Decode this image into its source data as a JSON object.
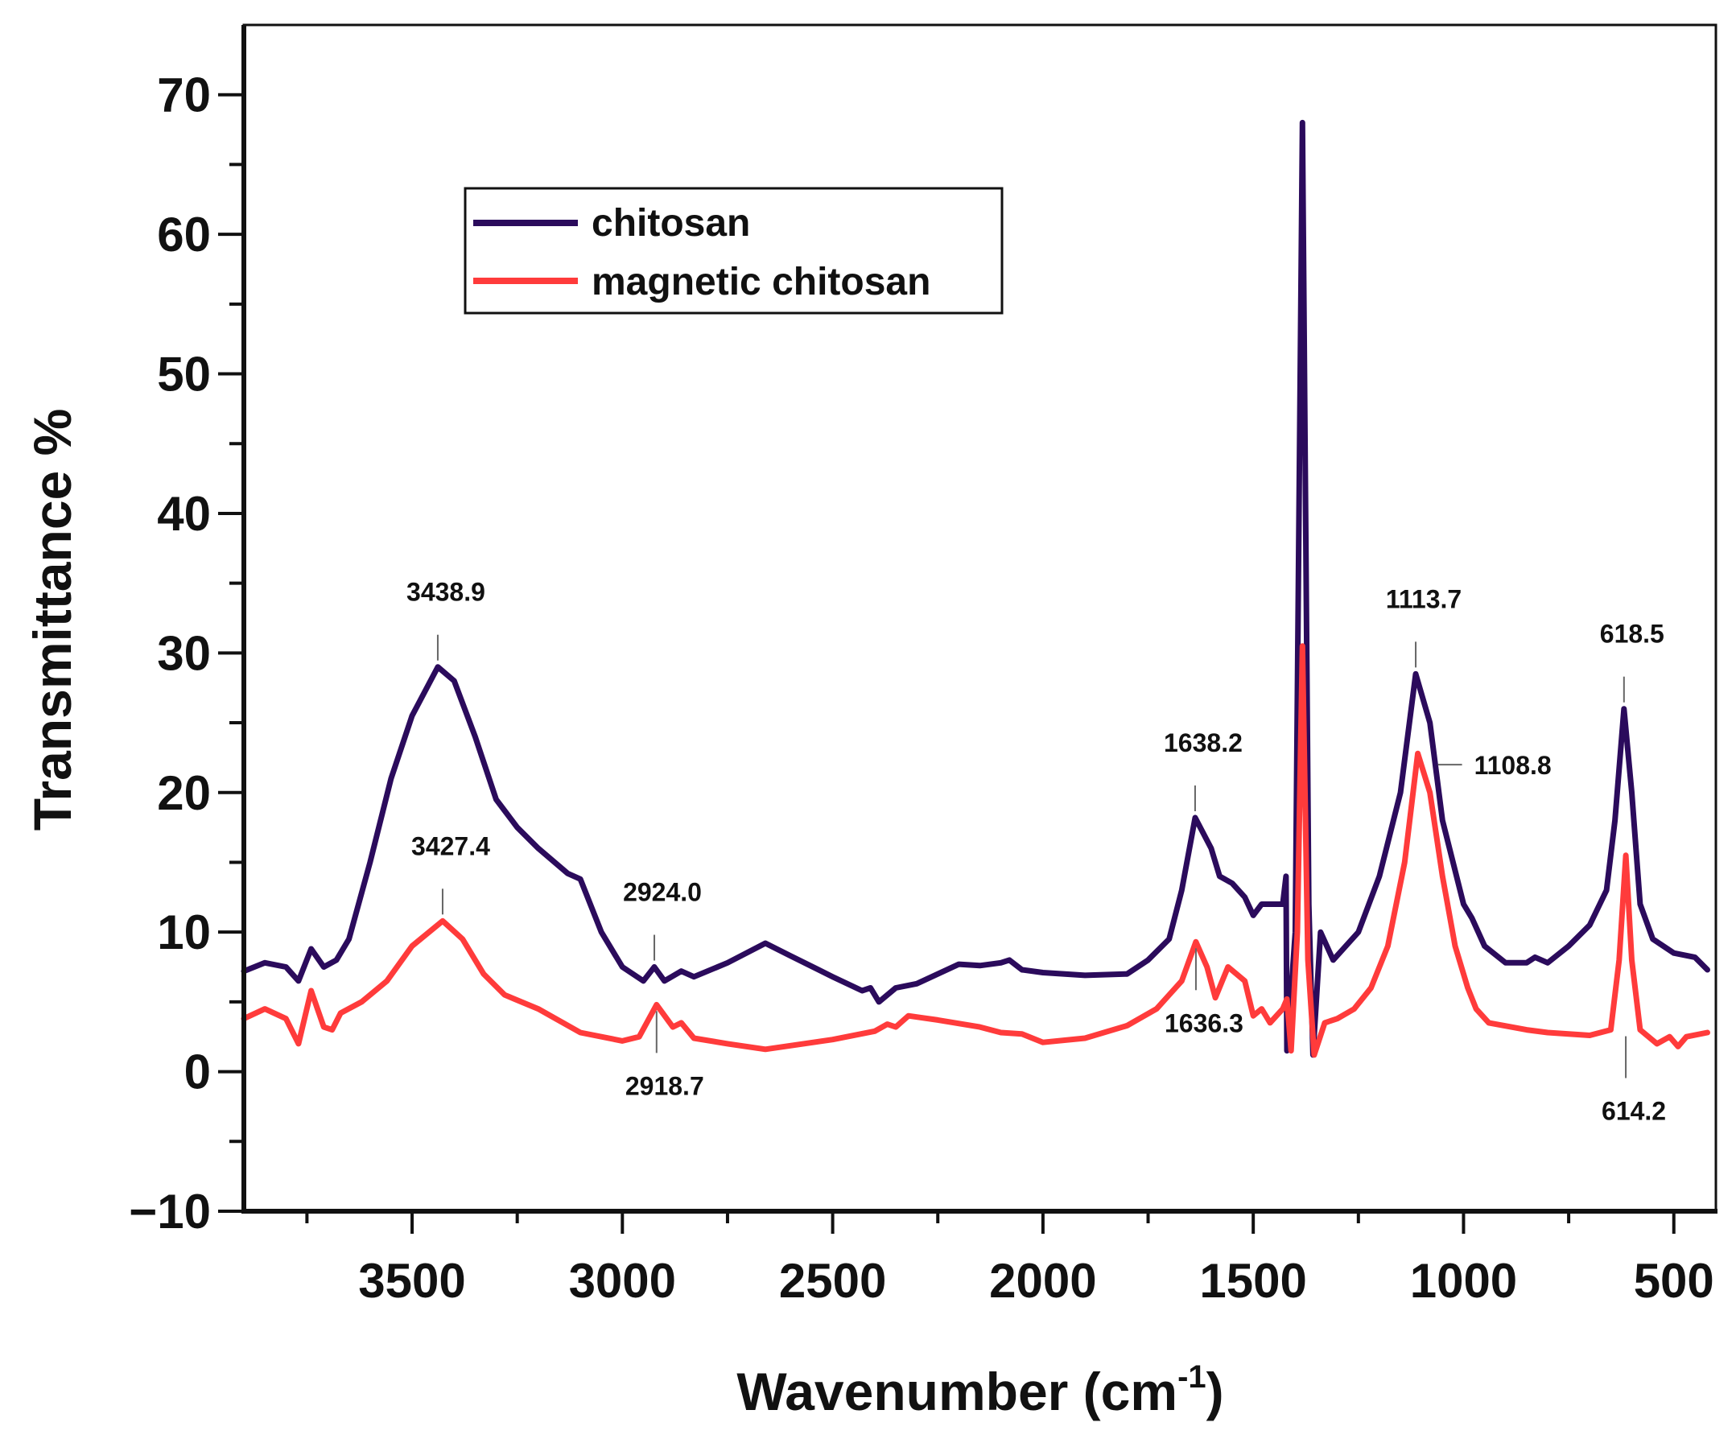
{
  "chart_data": {
    "type": "line",
    "title": "",
    "xlabel": "Wavenumber (cm",
    "xlabel_sup": "-1",
    "xlabel_close": ")",
    "ylabel": "Transmittance %",
    "xlim": [
      3900,
      400
    ],
    "ylim": [
      -10,
      75
    ],
    "x_reversed": true,
    "grid": false,
    "legend_position": "top-left",
    "x_ticks": [
      3500,
      3000,
      2500,
      2000,
      1500,
      1000,
      500
    ],
    "x_tick_labels": [
      "3500",
      "3000",
      "2500",
      "2000",
      "1500",
      "1000",
      "500"
    ],
    "y_ticks": [
      -10,
      0,
      10,
      20,
      30,
      40,
      50,
      60,
      70
    ],
    "y_tick_labels": [
      "−10",
      "0",
      "10",
      "20",
      "30",
      "40",
      "50",
      "60",
      "70"
    ],
    "series": [
      {
        "name": "chitosan",
        "color": "#2b0b5c",
        "points": [
          [
            3900,
            7.2
          ],
          [
            3850,
            7.8
          ],
          [
            3800,
            7.5
          ],
          [
            3770,
            6.5
          ],
          [
            3740,
            8.8
          ],
          [
            3710,
            7.5
          ],
          [
            3680,
            8.0
          ],
          [
            3650,
            9.5
          ],
          [
            3600,
            15
          ],
          [
            3550,
            21
          ],
          [
            3500,
            25.5
          ],
          [
            3438.9,
            29.0
          ],
          [
            3400,
            28
          ],
          [
            3350,
            24
          ],
          [
            3300,
            19.5
          ],
          [
            3250,
            17.5
          ],
          [
            3200,
            16
          ],
          [
            3130,
            14.2
          ],
          [
            3100,
            13.8
          ],
          [
            3050,
            10
          ],
          [
            3000,
            7.5
          ],
          [
            2950,
            6.5
          ],
          [
            2924,
            7.5
          ],
          [
            2900,
            6.5
          ],
          [
            2860,
            7.2
          ],
          [
            2830,
            6.8
          ],
          [
            2750,
            7.8
          ],
          [
            2660,
            9.2
          ],
          [
            2600,
            8.3
          ],
          [
            2500,
            6.8
          ],
          [
            2430,
            5.8
          ],
          [
            2410,
            6.0
          ],
          [
            2390,
            5.0
          ],
          [
            2350,
            6.0
          ],
          [
            2300,
            6.3
          ],
          [
            2200,
            7.7
          ],
          [
            2150,
            7.6
          ],
          [
            2100,
            7.8
          ],
          [
            2080,
            8.0
          ],
          [
            2050,
            7.3
          ],
          [
            2000,
            7.1
          ],
          [
            1900,
            6.9
          ],
          [
            1800,
            7.0
          ],
          [
            1750,
            8.0
          ],
          [
            1700,
            9.5
          ],
          [
            1670,
            13
          ],
          [
            1638.2,
            18.2
          ],
          [
            1600,
            16
          ],
          [
            1580,
            14
          ],
          [
            1550,
            13.5
          ],
          [
            1520,
            12.5
          ],
          [
            1500,
            11.2
          ],
          [
            1480,
            12
          ],
          [
            1430,
            12
          ],
          [
            1422,
            14
          ],
          [
            1420,
            1.5
          ],
          [
            1400,
            10
          ],
          [
            1383,
            68
          ],
          [
            1368,
            12
          ],
          [
            1358,
            1.2
          ],
          [
            1340,
            10
          ],
          [
            1310,
            8
          ],
          [
            1250,
            10
          ],
          [
            1200,
            14
          ],
          [
            1150,
            20
          ],
          [
            1113.7,
            28.5
          ],
          [
            1080,
            25
          ],
          [
            1050,
            18
          ],
          [
            1000,
            12
          ],
          [
            980,
            11
          ],
          [
            950,
            9
          ],
          [
            900,
            7.8
          ],
          [
            850,
            7.8
          ],
          [
            830,
            8.2
          ],
          [
            800,
            7.8
          ],
          [
            750,
            9
          ],
          [
            700,
            10.5
          ],
          [
            660,
            13
          ],
          [
            640,
            18
          ],
          [
            618.5,
            26
          ],
          [
            600,
            20
          ],
          [
            580,
            12
          ],
          [
            550,
            9.5
          ],
          [
            500,
            8.5
          ],
          [
            450,
            8.2
          ],
          [
            420,
            7.3
          ]
        ]
      },
      {
        "name": "magnetic chitosan",
        "color": "#ff3b3b",
        "points": [
          [
            3900,
            3.8
          ],
          [
            3850,
            4.5
          ],
          [
            3800,
            3.8
          ],
          [
            3770,
            2.0
          ],
          [
            3740,
            5.8
          ],
          [
            3710,
            3.2
          ],
          [
            3690,
            3.0
          ],
          [
            3670,
            4.2
          ],
          [
            3620,
            5.0
          ],
          [
            3560,
            6.5
          ],
          [
            3500,
            9.0
          ],
          [
            3427.4,
            10.8
          ],
          [
            3380,
            9.5
          ],
          [
            3330,
            7
          ],
          [
            3280,
            5.5
          ],
          [
            3200,
            4.5
          ],
          [
            3100,
            2.8
          ],
          [
            3000,
            2.2
          ],
          [
            2960,
            2.5
          ],
          [
            2918.7,
            4.8
          ],
          [
            2880,
            3.2
          ],
          [
            2860,
            3.5
          ],
          [
            2830,
            2.4
          ],
          [
            2750,
            2.0
          ],
          [
            2660,
            1.6
          ],
          [
            2500,
            2.3
          ],
          [
            2400,
            2.9
          ],
          [
            2370,
            3.4
          ],
          [
            2350,
            3.2
          ],
          [
            2320,
            4.0
          ],
          [
            2250,
            3.7
          ],
          [
            2150,
            3.2
          ],
          [
            2100,
            2.8
          ],
          [
            2050,
            2.7
          ],
          [
            2000,
            2.1
          ],
          [
            1900,
            2.4
          ],
          [
            1800,
            3.3
          ],
          [
            1730,
            4.5
          ],
          [
            1700,
            5.5
          ],
          [
            1670,
            6.5
          ],
          [
            1636.3,
            9.3
          ],
          [
            1610,
            7.5
          ],
          [
            1590,
            5.3
          ],
          [
            1560,
            7.5
          ],
          [
            1540,
            7.0
          ],
          [
            1520,
            6.5
          ],
          [
            1500,
            4.0
          ],
          [
            1480,
            4.5
          ],
          [
            1460,
            3.5
          ],
          [
            1430,
            4.5
          ],
          [
            1420,
            5.2
          ],
          [
            1410,
            1.5
          ],
          [
            1395,
            10
          ],
          [
            1383,
            30.5
          ],
          [
            1370,
            8
          ],
          [
            1355,
            1.2
          ],
          [
            1330,
            3.5
          ],
          [
            1300,
            3.8
          ],
          [
            1260,
            4.5
          ],
          [
            1220,
            6
          ],
          [
            1180,
            9
          ],
          [
            1140,
            15
          ],
          [
            1108.8,
            22.8
          ],
          [
            1080,
            20
          ],
          [
            1050,
            14
          ],
          [
            1020,
            9
          ],
          [
            990,
            6
          ],
          [
            970,
            4.5
          ],
          [
            940,
            3.5
          ],
          [
            850,
            3
          ],
          [
            800,
            2.8
          ],
          [
            700,
            2.6
          ],
          [
            650,
            3
          ],
          [
            630,
            8
          ],
          [
            614.2,
            15.5
          ],
          [
            600,
            8
          ],
          [
            580,
            3
          ],
          [
            540,
            2
          ],
          [
            510,
            2.5
          ],
          [
            490,
            1.8
          ],
          [
            470,
            2.5
          ],
          [
            420,
            2.8
          ]
        ]
      }
    ],
    "annotations": [
      {
        "text": "3438.9",
        "x": 3438.9,
        "y": 29.0,
        "placement": "above"
      },
      {
        "text": "3427.4",
        "x": 3427.4,
        "y": 10.8,
        "placement": "above"
      },
      {
        "text": "2924.0",
        "x": 2924.0,
        "y": 7.5,
        "placement": "above"
      },
      {
        "text": "2918.7",
        "x": 2918.7,
        "y": 4.8,
        "placement": "below"
      },
      {
        "text": "1638.2",
        "x": 1638.2,
        "y": 18.2,
        "placement": "above"
      },
      {
        "text": "1636.3",
        "x": 1636.3,
        "y": 9.3,
        "placement": "below"
      },
      {
        "text": "1113.7",
        "x": 1113.7,
        "y": 28.5,
        "placement": "above"
      },
      {
        "text": "1108.8",
        "x": 1108.8,
        "y": 22.0,
        "placement": "right"
      },
      {
        "text": "618.5",
        "x": 618.5,
        "y": 26.0,
        "placement": "above"
      },
      {
        "text": "614.2",
        "x": 614.2,
        "y": 3.0,
        "placement": "below"
      }
    ]
  }
}
